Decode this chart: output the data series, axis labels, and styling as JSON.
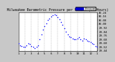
{
  "title": "Milwaukee Barometric Pressure per Minute (24 Hours)",
  "bg_color": "#c8c8c8",
  "plot_bg": "#ffffff",
  "dot_color": "#0000ff",
  "legend_color": "#0000cc",
  "grid_color": "#888888",
  "ylim": [
    29.44,
    30.24
  ],
  "xlim": [
    0,
    1440
  ],
  "x_tick_positions": [
    0,
    120,
    240,
    360,
    480,
    600,
    720,
    840,
    960,
    1080,
    1200,
    1320,
    1440
  ],
  "x_tick_labels": [
    "1",
    "2",
    "3",
    "4",
    "5",
    "6",
    "7",
    "8",
    "9",
    "10",
    "11",
    "12",
    "1"
  ],
  "y_tick_positions": [
    29.44,
    29.52,
    29.6,
    29.68,
    29.76,
    29.84,
    29.92,
    30.0,
    30.08,
    30.16,
    30.24
  ],
  "y_tick_labels": [
    "29.44",
    "29.52",
    "29.60",
    "29.68",
    "29.76",
    "29.84",
    "29.92",
    "30.00",
    "30.08",
    "30.16",
    "30.24"
  ],
  "vgrid_positions": [
    120,
    240,
    360,
    480,
    600,
    720,
    840,
    960,
    1080,
    1200,
    1320
  ],
  "data_x": [
    0,
    30,
    60,
    90,
    120,
    150,
    180,
    210,
    240,
    270,
    300,
    330,
    360,
    390,
    420,
    450,
    480,
    510,
    540,
    570,
    600,
    630,
    660,
    690,
    720,
    750,
    780,
    810,
    840,
    870,
    900,
    930,
    960,
    990,
    1020,
    1050,
    1080,
    1110,
    1140,
    1170,
    1200,
    1230,
    1260,
    1290,
    1320,
    1350,
    1380,
    1410,
    1440
  ],
  "data_y": [
    29.6,
    29.56,
    29.54,
    29.52,
    29.52,
    29.56,
    29.6,
    29.58,
    29.54,
    29.52,
    29.5,
    29.52,
    29.56,
    29.68,
    29.78,
    29.88,
    29.96,
    30.02,
    30.08,
    30.12,
    30.16,
    30.18,
    30.2,
    30.18,
    30.14,
    30.1,
    30.04,
    29.98,
    29.92,
    29.84,
    29.78,
    29.74,
    29.72,
    29.7,
    29.68,
    29.68,
    29.7,
    29.72,
    29.68,
    29.66,
    29.7,
    29.68,
    29.66,
    29.64,
    29.62,
    29.6,
    29.58,
    29.54,
    29.52
  ],
  "dot_size": 1.2,
  "legend_label": "Pressure"
}
